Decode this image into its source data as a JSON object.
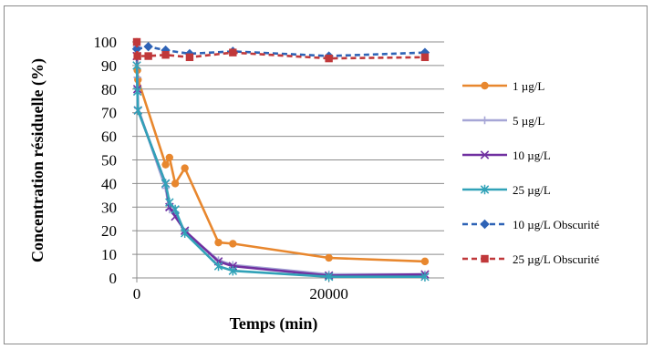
{
  "chart_data": {
    "type": "line",
    "title": "",
    "xlabel": "Temps (min)",
    "ylabel": "Concentration résiduelle (%)",
    "xlim": [
      0,
      32000
    ],
    "ylim": [
      0,
      100
    ],
    "xticks": [
      0,
      20000
    ],
    "yticks": [
      0,
      10,
      20,
      30,
      40,
      50,
      60,
      70,
      80,
      90,
      100
    ],
    "grid": "horizontal",
    "legend_position": "right",
    "series": [
      {
        "name": "1 µg/L",
        "color": "#e8872e",
        "dash": false,
        "marker": "circle",
        "x": [
          0,
          60,
          120,
          3000,
          3400,
          4000,
          5000,
          8500,
          10000,
          20000,
          30000
        ],
        "y": [
          100,
          88,
          84,
          48,
          51,
          40,
          46.5,
          15,
          14.5,
          8.5,
          7
        ]
      },
      {
        "name": "5 µg/L",
        "color": "#a6a6d6",
        "dash": false,
        "marker": "plus",
        "x": [
          0,
          60,
          120,
          3000,
          3400,
          4000,
          5000,
          8500,
          10000,
          20000,
          30000
        ],
        "y": [
          98,
          85,
          72,
          38,
          29,
          28,
          19.5,
          7.5,
          5.5,
          1.5,
          1.5
        ]
      },
      {
        "name": "10 µg/L",
        "color": "#7030a0",
        "dash": false,
        "marker": "x",
        "x": [
          0,
          60,
          120,
          3000,
          3400,
          4000,
          5000,
          8500,
          10000,
          20000,
          30000
        ],
        "y": [
          94,
          80,
          71,
          40,
          30,
          26,
          20,
          7,
          5,
          1,
          1.5
        ]
      },
      {
        "name": "25 µg/L",
        "color": "#31a2b8",
        "dash": false,
        "marker": "star",
        "x": [
          0,
          60,
          120,
          3000,
          3400,
          4000,
          5000,
          8500,
          10000,
          20000,
          30000
        ],
        "y": [
          90,
          79,
          71,
          40,
          32,
          29,
          19,
          5,
          3,
          0.5,
          0.5
        ]
      },
      {
        "name": "10 µg/L Obscurité",
        "color": "#2e63b6",
        "dash": true,
        "marker": "diamond",
        "x": [
          0,
          1200,
          3000,
          5500,
          10000,
          20000,
          30000
        ],
        "y": [
          97,
          98,
          96.5,
          95,
          96,
          94,
          95.5
        ]
      },
      {
        "name": "25 µg/L Obscurité",
        "color": "#c0383a",
        "dash": true,
        "marker": "square",
        "x": [
          0,
          60,
          1200,
          3000,
          5500,
          10000,
          20000,
          30000
        ],
        "y": [
          100,
          94,
          94,
          94.5,
          93.5,
          95.5,
          93,
          93.5
        ]
      }
    ]
  }
}
